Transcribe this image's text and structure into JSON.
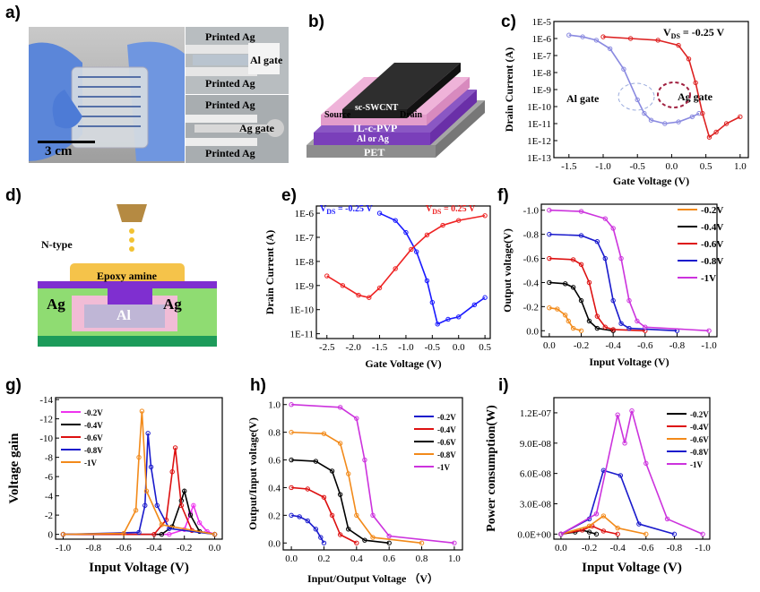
{
  "figure": {
    "panel_labels": [
      "a)",
      "b)",
      "c)",
      "d)",
      "e)",
      "f)",
      "g)",
      "h)",
      "i)"
    ]
  },
  "panel_a": {
    "scale_bar": "3 cm",
    "insets": [
      "Printed Ag",
      "Al gate",
      "Printed Ag",
      "Printed Ag",
      "Ag gate",
      "Printed Ag"
    ]
  },
  "panel_b": {
    "layers": {
      "channel": "sc-SWCNT",
      "source": "Source",
      "drain": "Drain",
      "dielectric": "IL-c-PVP",
      "gate": "Al or Ag",
      "substrate": "PET"
    }
  },
  "panel_d": {
    "type_label": "N-type",
    "epoxy": "Epoxy amine",
    "left_electrode": "Ag",
    "right_electrode": "Ag",
    "gate": "Al"
  },
  "chart_data": [
    {
      "panel": "c",
      "type": "line",
      "xlabel": "Gate Voltage (V)",
      "ylabel": "Drain Current (A)",
      "annotation": "V_DS = -0.25 V",
      "xlim": [
        -1.7,
        1.1
      ],
      "yscale": "log",
      "xticks": [
        "-1.5",
        "-1.0",
        "-0.5",
        "0.0",
        "0.5",
        "1.0"
      ],
      "yticks": [
        "1E-5",
        "1E-6",
        "1E-7",
        "1E-8",
        "1E-9",
        "1E-10",
        "1E-11",
        "1E-12",
        "1E-13"
      ],
      "series": [
        {
          "name": "Al gate",
          "color": "#8a8ae0",
          "x": [
            -1.5,
            -1.3,
            -1.1,
            -0.9,
            -0.7,
            -0.5,
            -0.4,
            -0.3,
            -0.1,
            0.1,
            0.3,
            0.4
          ],
          "y": [
            -5.8,
            -5.9,
            -6.1,
            -6.6,
            -7.8,
            -9.6,
            -10.4,
            -10.8,
            -11.0,
            -10.9,
            -10.6,
            -10.4
          ]
        },
        {
          "name": "Ag gate",
          "color": "#dd2222",
          "x": [
            -1.0,
            -0.6,
            -0.2,
            0.1,
            0.25,
            0.35,
            0.45,
            0.55,
            0.65,
            0.8,
            1.0
          ],
          "y": [
            -5.9,
            -6.0,
            -6.1,
            -6.4,
            -7.2,
            -8.6,
            -10.4,
            -11.8,
            -11.5,
            -11.0,
            -10.6
          ]
        }
      ]
    },
    {
      "panel": "e",
      "type": "line",
      "xlabel": "Gate Voltage (V)",
      "ylabel": "Drain Current (A)",
      "annotations": [
        "V_DS = -0.25 V",
        "V_DS = 0.25 V"
      ],
      "xticks": [
        "-2.5",
        "-2.0",
        "-1.5",
        "-1.0",
        "-0.5",
        "0.0",
        "0.5"
      ],
      "yticks": [
        "1E-6",
        "1E-7",
        "1E-8",
        "1E-9",
        "1E-10",
        "1E-11"
      ],
      "series": [
        {
          "name": "V_DS = -0.25 V",
          "color": "#1a1aff",
          "x": [
            -1.5,
            -1.2,
            -1.0,
            -0.8,
            -0.6,
            -0.5,
            -0.4,
            -0.2,
            0.0,
            0.3,
            0.5
          ],
          "y": [
            -6.0,
            -6.3,
            -6.8,
            -7.6,
            -8.8,
            -9.7,
            -10.6,
            -10.4,
            -10.3,
            -9.8,
            -9.5
          ]
        },
        {
          "name": "V_DS = 0.25 V",
          "color": "#ee2222",
          "x": [
            -2.5,
            -2.2,
            -1.9,
            -1.7,
            -1.5,
            -1.2,
            -0.9,
            -0.6,
            -0.3,
            0.0,
            0.5
          ],
          "y": [
            -8.6,
            -9.0,
            -9.4,
            -9.5,
            -9.1,
            -8.3,
            -7.5,
            -6.9,
            -6.5,
            -6.3,
            -6.1
          ]
        }
      ]
    },
    {
      "panel": "f",
      "type": "line",
      "xlabel": "Input Voltage (V)",
      "ylabel": "Output voltage(V)",
      "xticks": [
        "0.0",
        "-0.2",
        "-0.4",
        "-0.6",
        "-0.8",
        "-1.0"
      ],
      "yticks": [
        "-1.0",
        "-0.8",
        "-0.6",
        "-0.4",
        "-0.2",
        "0.0"
      ],
      "series": [
        {
          "name": "-0.2V",
          "color": "#f28a1a",
          "x": [
            0,
            -0.05,
            -0.1,
            -0.12,
            -0.15,
            -0.2
          ],
          "y": [
            -0.19,
            -0.18,
            -0.13,
            -0.08,
            -0.02,
            0
          ]
        },
        {
          "name": "-0.4V",
          "color": "#000000",
          "x": [
            0,
            -0.1,
            -0.15,
            -0.2,
            -0.25,
            -0.3,
            -0.4
          ],
          "y": [
            -0.4,
            -0.39,
            -0.36,
            -0.25,
            -0.08,
            -0.02,
            0
          ]
        },
        {
          "name": "-0.6V",
          "color": "#dd1111",
          "x": [
            0,
            -0.15,
            -0.2,
            -0.25,
            -0.3,
            -0.35,
            -0.4,
            -0.6
          ],
          "y": [
            -0.6,
            -0.59,
            -0.55,
            -0.4,
            -0.12,
            -0.03,
            -0.01,
            0
          ]
        },
        {
          "name": "-0.8V",
          "color": "#1a1acc",
          "x": [
            0,
            -0.2,
            -0.3,
            -0.35,
            -0.4,
            -0.45,
            -0.5,
            -0.8
          ],
          "y": [
            -0.8,
            -0.79,
            -0.74,
            -0.6,
            -0.25,
            -0.06,
            -0.02,
            0
          ]
        },
        {
          "name": "-1V",
          "color": "#cc33dd",
          "x": [
            0,
            -0.2,
            -0.35,
            -0.4,
            -0.45,
            -0.5,
            -0.55,
            -0.6,
            -1.0
          ],
          "y": [
            -1.0,
            -0.99,
            -0.93,
            -0.85,
            -0.6,
            -0.25,
            -0.08,
            -0.03,
            0
          ]
        }
      ]
    },
    {
      "panel": "g",
      "type": "line",
      "xlabel": "Input Voltage   (V)",
      "ylabel": "Voltage gain",
      "xticks": [
        "-1.0",
        "-0.8",
        "-0.6",
        "-0.4",
        "-0.2",
        "0.0"
      ],
      "yticks": [
        "-14",
        "-12",
        "-10",
        "-8",
        "-6",
        "-4",
        "-2",
        "0"
      ],
      "series": [
        {
          "name": "-0.2V",
          "color": "#ee33ee",
          "x": [
            -1.0,
            -0.3,
            -0.2,
            -0.16,
            -0.14,
            -0.1,
            -0.05,
            0
          ],
          "y": [
            0,
            0,
            -0.5,
            -2.2,
            -3.0,
            -1.2,
            -0.3,
            0
          ]
        },
        {
          "name": "-0.4V",
          "color": "#000000",
          "x": [
            -1.0,
            -0.35,
            -0.28,
            -0.22,
            -0.2,
            -0.16,
            -0.1,
            0
          ],
          "y": [
            0,
            0,
            -0.8,
            -3.5,
            -4.5,
            -2.0,
            -0.3,
            0
          ]
        },
        {
          "name": "-0.6V",
          "color": "#dd1111",
          "x": [
            -1.0,
            -0.4,
            -0.32,
            -0.28,
            -0.26,
            -0.22,
            -0.15,
            0
          ],
          "y": [
            0,
            0,
            -1.5,
            -6.5,
            -9.0,
            -3.0,
            -0.4,
            0
          ]
        },
        {
          "name": "-0.8V",
          "color": "#1a1acc",
          "x": [
            -1.0,
            -0.5,
            -0.46,
            -0.44,
            -0.42,
            -0.38,
            -0.3,
            0
          ],
          "y": [
            0,
            -0.2,
            -3.0,
            -10.5,
            -7.0,
            -3.0,
            -0.6,
            0
          ]
        },
        {
          "name": "-1V",
          "color": "#f28a1a",
          "x": [
            -1.0,
            -0.6,
            -0.52,
            -0.5,
            -0.48,
            -0.45,
            -0.35,
            0
          ],
          "y": [
            0,
            -0.1,
            -2.5,
            -8.0,
            -12.8,
            -4.5,
            -1.0,
            0
          ]
        }
      ]
    },
    {
      "panel": "h",
      "type": "line",
      "xlabel": "Input/Output Voltage （V）",
      "ylabel": "Output/Input voltage(V)",
      "xticks": [
        "0.0",
        "0.2",
        "0.4",
        "0.6",
        "0.8",
        "1.0"
      ],
      "yticks": [
        "0.0",
        "0.2",
        "0.4",
        "0.6",
        "0.8",
        "1.0"
      ],
      "series": [
        {
          "name": "-0.2V",
          "color": "#1a1acc",
          "x": [
            0,
            0.05,
            0.1,
            0.15,
            0.18,
            0.2
          ],
          "y": [
            0.2,
            0.19,
            0.16,
            0.1,
            0.04,
            0
          ]
        },
        {
          "name": "-0.4V",
          "color": "#dd1111",
          "x": [
            0,
            0.1,
            0.2,
            0.25,
            0.3,
            0.4
          ],
          "y": [
            0.4,
            0.39,
            0.33,
            0.2,
            0.06,
            0
          ]
        },
        {
          "name": "-0.6V",
          "color": "#000000",
          "x": [
            0,
            0.15,
            0.25,
            0.3,
            0.35,
            0.45,
            0.6
          ],
          "y": [
            0.6,
            0.59,
            0.52,
            0.35,
            0.1,
            0.02,
            0
          ]
        },
        {
          "name": "-0.8V",
          "color": "#f28a1a",
          "x": [
            0,
            0.2,
            0.3,
            0.35,
            0.4,
            0.5,
            0.8
          ],
          "y": [
            0.8,
            0.79,
            0.72,
            0.5,
            0.2,
            0.04,
            0
          ]
        },
        {
          "name": "-1V",
          "color": "#cc33dd",
          "x": [
            0,
            0.3,
            0.4,
            0.45,
            0.5,
            0.6,
            1.0
          ],
          "y": [
            1.0,
            0.98,
            0.9,
            0.6,
            0.2,
            0.05,
            0
          ]
        }
      ]
    },
    {
      "panel": "i",
      "type": "line",
      "xlabel": "Input Voltage  (V)",
      "ylabel": "Power consumption(W)",
      "xticks": [
        "0.0",
        "-0.2",
        "-0.4",
        "-0.6",
        "-0.8",
        "-1.0"
      ],
      "yticks": [
        "0.0E+00",
        "3.0E-08",
        "6.0E-08",
        "9.0E-08",
        "1.2E-07"
      ],
      "series": [
        {
          "name": "-0.2V",
          "color": "#000000",
          "x": [
            0,
            -0.1,
            -0.15,
            -0.2,
            -0.25
          ],
          "y": [
            0,
            2e-09,
            4e-09,
            2e-09,
            0
          ]
        },
        {
          "name": "-0.4V",
          "color": "#dd1111",
          "x": [
            0,
            -0.15,
            -0.22,
            -0.3,
            -0.4
          ],
          "y": [
            0,
            4e-09,
            8e-09,
            3e-09,
            0
          ]
        },
        {
          "name": "-0.6V",
          "color": "#f28a1a",
          "x": [
            0,
            -0.2,
            -0.3,
            -0.4,
            -0.6
          ],
          "y": [
            0,
            8e-09,
            1.8e-08,
            6e-09,
            0
          ]
        },
        {
          "name": "-0.8V",
          "color": "#1a1acc",
          "x": [
            0,
            -0.2,
            -0.3,
            -0.42,
            -0.55,
            -0.8
          ],
          "y": [
            0,
            1.5e-08,
            6.3e-08,
            5.8e-08,
            1e-08,
            0
          ]
        },
        {
          "name": "-1V",
          "color": "#cc33dd",
          "x": [
            0,
            -0.25,
            -0.4,
            -0.45,
            -0.5,
            -0.6,
            -0.75,
            -1.0
          ],
          "y": [
            0,
            2e-08,
            1.18e-07,
            9e-08,
            1.22e-07,
            7e-08,
            1.5e-08,
            0
          ]
        }
      ]
    }
  ]
}
